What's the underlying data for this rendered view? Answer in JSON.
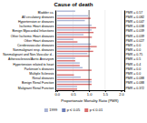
{
  "chart_data": {
    "type": "bar",
    "orientation": "horizontal",
    "title": "Cause of death",
    "xlabel": "Proportionate Mortality Ratio (PMR)",
    "categories": [
      "Bladder ca.",
      "All circulatory diseases",
      "Hypertension or diseases",
      "Ischemic Heart diseases",
      "Benign Myocardial Infarctions",
      "Other Ischemic Heart diseases",
      "Other Heart diseases",
      "Cerebrovascular diseases",
      "Nonmalignant resp. diseases",
      "Nonmalignant and Non-Vascular d...",
      "Atherosclerosis/Aortic Aneurysm",
      "Hypertension related to heart",
      "Parkinson's diseases",
      "Multiple Sclerosis",
      "Renal diseases",
      "Benign Renal Function",
      "Malignant Renal Function"
    ],
    "annotations": [
      "PMR = 0.57",
      "PMR = 0.082",
      "PMR = 0.047",
      "PMR = 0.038",
      "PMR = 0.039",
      "PMR = 0.039",
      "PMR = 0.027",
      "PMR = 0.0",
      "PMR = 0.0",
      "PMR = 0.75",
      "PMR = 0.5",
      "PMR = 0.4",
      "PMR = 0.0",
      "PMR = 0.0",
      "PMR = 0.088",
      "PMR = 0.088",
      "PMR = 0.372"
    ],
    "series": [
      {
        "name": "1999",
        "color": "#aab4d4",
        "values": [
          0.57,
          0.97,
          0.87,
          1.08,
          1.08,
          0.83,
          0.51,
          1.06,
          1.05,
          0.95,
          0.57,
          0.71,
          0.8,
          0.0,
          0.74,
          1.08,
          0.63
        ]
      },
      {
        "name": "p ≤ 0.05",
        "color": "#7080b8",
        "values": [
          0.0,
          0.0,
          0.0,
          0.0,
          0.0,
          0.0,
          0.0,
          0.0,
          0.0,
          0.0,
          0.0,
          0.0,
          0.0,
          0.0,
          0.0,
          0.0,
          0.0
        ]
      },
      {
        "name": "p ≤ 0.01",
        "color": "#d87070",
        "values": [
          0.0,
          1.05,
          0.0,
          1.22,
          1.14,
          1.09,
          0.64,
          1.24,
          1.13,
          1.01,
          0.57,
          0.71,
          1.08,
          0.53,
          1.08,
          1.08,
          0.63
        ]
      }
    ],
    "vline": 1.0,
    "xlim": [
      -0.05,
      2.1
    ],
    "xticks": [
      {
        "value": 0.0,
        "label": "0.0"
      },
      0.5,
      {
        "value": 1.0,
        "label": "1.0"
      },
      1.5,
      {
        "value": 2.0,
        "label": "2.0"
      }
    ],
    "grid": true,
    "legend": "bottom"
  }
}
